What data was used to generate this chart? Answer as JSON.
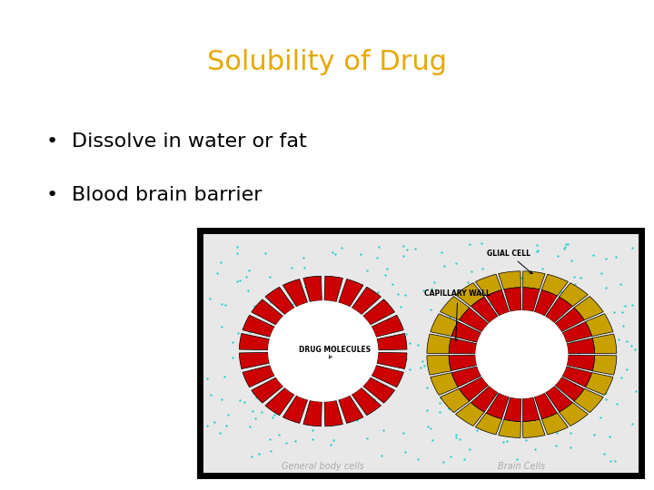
{
  "title": "Solubility of Drug",
  "title_color": "#E8A800",
  "title_fontsize": 22,
  "bullet_points": [
    "Dissolve in water or fat",
    "Blood brain barrier"
  ],
  "bullet_fontsize": 16,
  "bullet_color": "#000000",
  "background_color": "#FFFFFF",
  "caption_left": "General body cells",
  "caption_right": "Brain Cells",
  "caption_color": "#AAAAAA",
  "caption_fontsize": 7,
  "img_bg_color": "#E8E8E8",
  "seg_color": "#CC0000",
  "glial_color": "#C8A000",
  "dot_color": "#00CCCC",
  "border_color": "#000000"
}
